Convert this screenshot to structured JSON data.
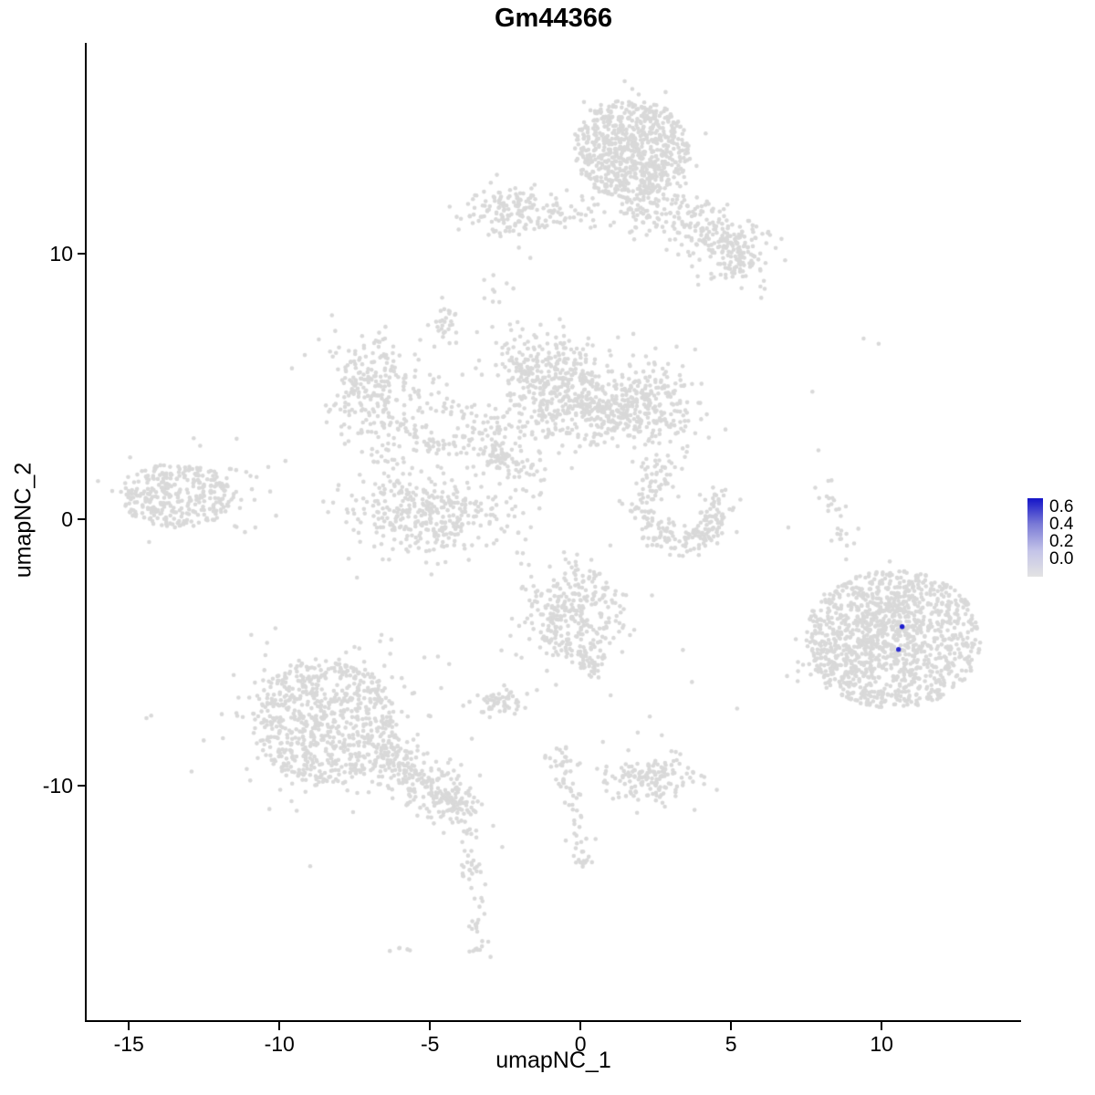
{
  "title": "Gm44366",
  "axes": {
    "xlabel": "umapNC_1",
    "ylabel": "umapNC_2",
    "x_ticks": [
      -15,
      -10,
      -5,
      0,
      5,
      10
    ],
    "x_tick_labels": [
      "-15",
      "-10",
      "-5",
      "0",
      "5",
      "10"
    ],
    "y_ticks": [
      10,
      0,
      -10
    ],
    "y_tick_labels": [
      "10",
      "0",
      "-10"
    ]
  },
  "legend": {
    "labels": [
      "0.6",
      "0.4",
      "0.2",
      "0.0"
    ],
    "values": [
      0.6,
      0.4,
      0.2,
      0.0
    ],
    "gradient_stops": [
      "#1414C8",
      "#7A7AD6",
      "#C4C4E8",
      "#E3E3E3"
    ]
  },
  "chart_data": {
    "type": "scatter",
    "title": "Gm44366",
    "xlabel": "umapNC_1",
    "ylabel": "umapNC_2",
    "x_range": [
      -16.4,
      14.6
    ],
    "y_range": [
      -18.8,
      17.9
    ],
    "grid": false,
    "legend_position": "right",
    "colorbar_range": [
      0.0,
      0.6
    ],
    "point_radius_px": 2.3,
    "base_point_color": "#D9D9D9",
    "expression_scale": {
      "min": 0.0,
      "max": 0.6,
      "low_color": "#E3E3E3",
      "high_color": "#1414C8"
    },
    "highlighted_points": [
      {
        "x": 10.68,
        "y": -4.02,
        "value": 0.65,
        "color": "#1C1CCE"
      },
      {
        "x": 10.56,
        "y": -4.88,
        "value": 0.55,
        "color": "#2A2ACE"
      }
    ],
    "clusters": [
      {
        "kind": "disc",
        "name": "top-main",
        "cx": 1.7,
        "cy": 13.9,
        "rx": 1.9,
        "ry": 1.9,
        "n": 550
      },
      {
        "kind": "gauss",
        "name": "top-main-core",
        "cx": 1.5,
        "cy": 14.2,
        "sx": 0.8,
        "sy": 0.8,
        "n": 160
      },
      {
        "kind": "gauss",
        "name": "top-neck",
        "cx": 2.0,
        "cy": 11.9,
        "sx": 0.45,
        "sy": 0.55,
        "n": 70
      },
      {
        "kind": "trail",
        "name": "top-right-trail",
        "x1": 2.6,
        "y1": 12.4,
        "x2": 5.9,
        "y2": 9.3,
        "jitter": 0.55,
        "n": 210
      },
      {
        "kind": "gauss",
        "name": "top-right-blob",
        "cx": 4.9,
        "cy": 10.1,
        "sx": 0.55,
        "sy": 0.5,
        "n": 90
      },
      {
        "kind": "gauss",
        "name": "top-left-blob",
        "cx": -2.3,
        "cy": 11.6,
        "sx": 0.8,
        "sy": 0.5,
        "n": 140
      },
      {
        "kind": "trail",
        "name": "top-left-neck",
        "x1": -1.3,
        "y1": 11.4,
        "x2": 0.4,
        "y2": 11.6,
        "jitter": 0.3,
        "n": 45
      },
      {
        "kind": "gauss",
        "name": "tiny-upper-dots",
        "cx": -2.85,
        "cy": 8.6,
        "sx": 0.15,
        "sy": 0.25,
        "n": 7
      },
      {
        "kind": "gauss",
        "name": "small-clump",
        "cx": -4.55,
        "cy": 7.5,
        "sx": 0.25,
        "sy": 0.35,
        "n": 28
      },
      {
        "kind": "gauss",
        "name": "midleft",
        "cx": -6.9,
        "cy": 5.0,
        "sx": 0.75,
        "sy": 1.05,
        "n": 230
      },
      {
        "kind": "trail",
        "name": "midleft-bridge",
        "x1": -5.6,
        "y1": 4.7,
        "x2": -3.4,
        "y2": 3.9,
        "jitter": 0.35,
        "n": 40
      },
      {
        "kind": "trail",
        "name": "connector-a",
        "x1": -6.3,
        "y1": 3.6,
        "x2": -4.6,
        "y2": 2.7,
        "jitter": 0.3,
        "n": 45
      },
      {
        "kind": "trail",
        "name": "connector-b",
        "x1": -4.6,
        "y1": 2.7,
        "x2": -3.0,
        "y2": 3.3,
        "jitter": 0.28,
        "n": 38
      },
      {
        "kind": "trail",
        "name": "connector-c",
        "x1": -3.0,
        "y1": 3.2,
        "x2": -2.5,
        "y2": 1.9,
        "jitter": 0.25,
        "n": 26
      },
      {
        "kind": "gauss",
        "name": "center-upper",
        "cx": -0.9,
        "cy": 5.0,
        "sx": 1.0,
        "sy": 1.1,
        "n": 460
      },
      {
        "kind": "gauss",
        "name": "center-upper-east",
        "cx": 0.4,
        "cy": 3.9,
        "sx": 0.55,
        "sy": 0.5,
        "n": 80
      },
      {
        "kind": "gauss",
        "name": "center-right",
        "cx": 2.1,
        "cy": 4.2,
        "sx": 0.95,
        "sy": 0.75,
        "n": 300
      },
      {
        "kind": "gauss",
        "name": "below-left",
        "cx": -5.0,
        "cy": 0.2,
        "sx": 1.3,
        "sy": 0.8,
        "n": 360
      },
      {
        "kind": "trail",
        "name": "below-left-up",
        "x1": -6.1,
        "y1": 1.3,
        "x2": -6.7,
        "y2": 2.9,
        "jitter": 0.3,
        "n": 22
      },
      {
        "kind": "disc",
        "name": "far-left",
        "cx": -13.4,
        "cy": 0.9,
        "rx": 1.9,
        "ry": 1.2,
        "n": 280
      },
      {
        "kind": "gauss",
        "name": "far-left-fringe",
        "cx": -13.2,
        "cy": 0.9,
        "sx": 1.3,
        "sy": 0.8,
        "n": 60
      },
      {
        "kind": "trail",
        "name": "far-left-east",
        "x1": -12.0,
        "y1": 1.2,
        "x2": -10.8,
        "y2": 1.6,
        "jitter": 0.4,
        "n": 14
      },
      {
        "kind": "gauss",
        "name": "center-small",
        "cx": -2.8,
        "cy": 2.5,
        "sx": 0.4,
        "sy": 0.45,
        "n": 55
      },
      {
        "kind": "gauss",
        "name": "center-small-2",
        "cx": -1.6,
        "cy": 1.4,
        "sx": 0.3,
        "sy": 0.4,
        "n": 22
      },
      {
        "kind": "arc",
        "name": "crescent",
        "cx": 3.3,
        "cy": 0.5,
        "r": 1.25,
        "a1": 150,
        "a2": 385,
        "jitter": 0.26,
        "n": 200
      },
      {
        "kind": "gauss",
        "name": "crescent-top",
        "cx": 2.5,
        "cy": 1.7,
        "sx": 0.3,
        "sy": 0.4,
        "n": 45
      },
      {
        "kind": "gauss",
        "name": "center-bottom",
        "cx": -0.35,
        "cy": -3.6,
        "sx": 0.9,
        "sy": 1.05,
        "n": 320
      },
      {
        "kind": "trail",
        "name": "center-bottom-tail",
        "x1": 0.0,
        "y1": -4.9,
        "x2": 0.6,
        "y2": -5.7,
        "jitter": 0.25,
        "n": 35
      },
      {
        "kind": "gauss",
        "name": "small-blob-mid",
        "cx": -2.75,
        "cy": -6.9,
        "sx": 0.45,
        "sy": 0.3,
        "n": 55
      },
      {
        "kind": "disc",
        "name": "bottom-left-main",
        "cx": -8.5,
        "cy": -7.6,
        "rx": 2.4,
        "ry": 2.4,
        "n": 650
      },
      {
        "kind": "gauss",
        "name": "bottom-left-fringe",
        "cx": -8.5,
        "cy": -7.6,
        "sx": 1.9,
        "sy": 1.7,
        "n": 150
      },
      {
        "kind": "trail",
        "name": "bottom-left-band",
        "x1": -6.7,
        "y1": -8.9,
        "x2": -4.4,
        "y2": -10.4,
        "jitter": 0.5,
        "n": 190
      },
      {
        "kind": "gauss",
        "name": "band-end-blob",
        "cx": -4.1,
        "cy": -10.7,
        "sx": 0.42,
        "sy": 0.38,
        "n": 85
      },
      {
        "kind": "trail",
        "name": "tail-down-1",
        "x1": -3.9,
        "y1": -11.2,
        "x2": -3.5,
        "y2": -13.9,
        "jitter": 0.17,
        "n": 32
      },
      {
        "kind": "trail",
        "name": "tail-down-2",
        "x1": -3.5,
        "y1": -14.1,
        "x2": -3.4,
        "y2": -15.8,
        "jitter": 0.14,
        "n": 16
      },
      {
        "kind": "gauss",
        "name": "tail-end-blob",
        "cx": -3.4,
        "cy": -16.1,
        "sx": 0.18,
        "sy": 0.18,
        "n": 9
      },
      {
        "kind": "gauss",
        "name": "tail-side-dots",
        "cx": -5.9,
        "cy": -16.2,
        "sx": 0.2,
        "sy": 0.12,
        "n": 5
      },
      {
        "kind": "gauss",
        "name": "chain-top-blob",
        "cx": -0.6,
        "cy": -9.1,
        "sx": 0.28,
        "sy": 0.3,
        "n": 22
      },
      {
        "kind": "trail",
        "name": "chain-1",
        "x1": -0.55,
        "y1": -9.5,
        "x2": -0.1,
        "y2": -11.3,
        "jitter": 0.18,
        "n": 26
      },
      {
        "kind": "trail",
        "name": "chain-2",
        "x1": -0.1,
        "y1": -11.4,
        "x2": 0.15,
        "y2": -13.3,
        "jitter": 0.16,
        "n": 22
      },
      {
        "kind": "gauss",
        "name": "bottom-small",
        "cx": 2.4,
        "cy": -9.8,
        "sx": 0.72,
        "sy": 0.45,
        "n": 150
      },
      {
        "kind": "disc",
        "name": "right-main",
        "cx": 10.4,
        "cy": -4.5,
        "rx": 2.9,
        "ry": 2.6,
        "n": 1000
      },
      {
        "kind": "gauss",
        "name": "right-main-core",
        "cx": 10.2,
        "cy": -4.3,
        "sx": 1.1,
        "sy": 1.0,
        "n": 220
      },
      {
        "kind": "gauss",
        "name": "right-west-lobe",
        "cx": 8.3,
        "cy": -5.3,
        "sx": 0.55,
        "sy": 0.5,
        "n": 60
      },
      {
        "kind": "trail",
        "name": "right-top-trail",
        "x1": 8.0,
        "y1": 1.4,
        "x2": 8.9,
        "y2": -1.1,
        "jitter": 0.22,
        "n": 26
      },
      {
        "kind": "points",
        "name": "scattered-singles",
        "pts": [
          [
            9.4,
            6.8
          ],
          [
            9.9,
            6.6
          ],
          [
            7.7,
            4.8
          ],
          [
            7.9,
            2.6
          ],
          [
            5.2,
            -7.1
          ],
          [
            3.4,
            -4.9
          ],
          [
            3.7,
            -6.1
          ],
          [
            2.3,
            -7.4
          ],
          [
            2.7,
            -8.1
          ],
          [
            1.9,
            -8.0
          ],
          [
            -2.9,
            -11.5
          ],
          [
            -2.6,
            -12.3
          ],
          [
            0.5,
            -12.0
          ],
          [
            -5.5,
            6.2
          ],
          [
            2.9,
            2.4
          ],
          [
            -9.8,
            2.2
          ],
          [
            -10.8,
            -0.3
          ],
          [
            1.0,
            -6.6
          ],
          [
            4.4,
            1.2
          ],
          [
            6.9,
            -0.3
          ],
          [
            -3.2,
            9.0
          ]
        ]
      }
    ]
  }
}
